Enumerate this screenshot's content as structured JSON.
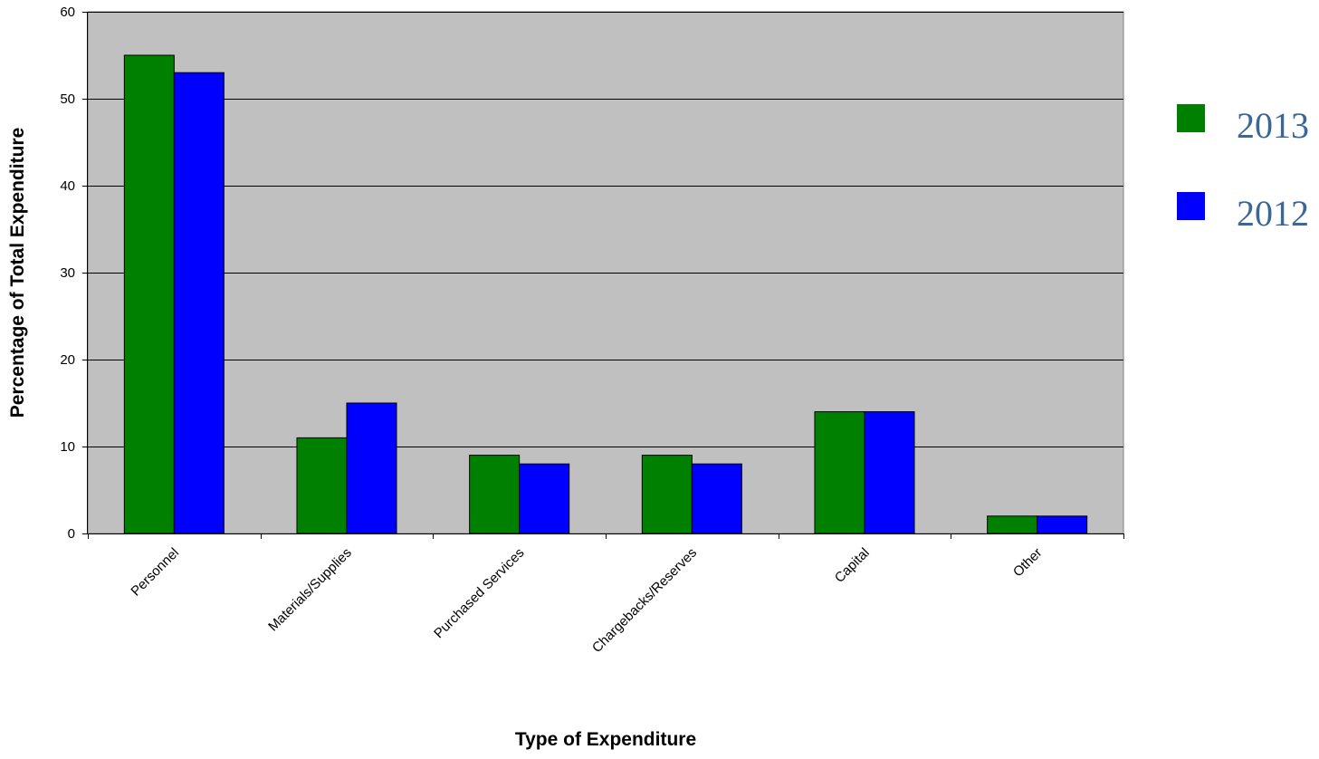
{
  "chart_data": {
    "type": "bar",
    "categories": [
      "Personnel",
      "Materials/Supplies",
      "Purchased Services",
      "Chargebacks/Reserves",
      "Capital",
      "Other"
    ],
    "series": [
      {
        "name": "2013",
        "color": "#008000",
        "values": [
          55,
          11,
          9,
          9,
          14,
          2
        ]
      },
      {
        "name": "2012",
        "color": "#0000ff",
        "values": [
          53,
          15,
          8,
          8,
          14,
          2
        ]
      }
    ],
    "xlabel": "Type of Expenditure",
    "ylabel": "Percentage of Total Expenditure",
    "ylim": [
      0,
      60
    ],
    "yticks": [
      0,
      10,
      20,
      30,
      40,
      50,
      60
    ],
    "grid": true,
    "plot_background": "#c0c0c0",
    "legend_position": "right",
    "legend_text_color": "#3a6796"
  }
}
